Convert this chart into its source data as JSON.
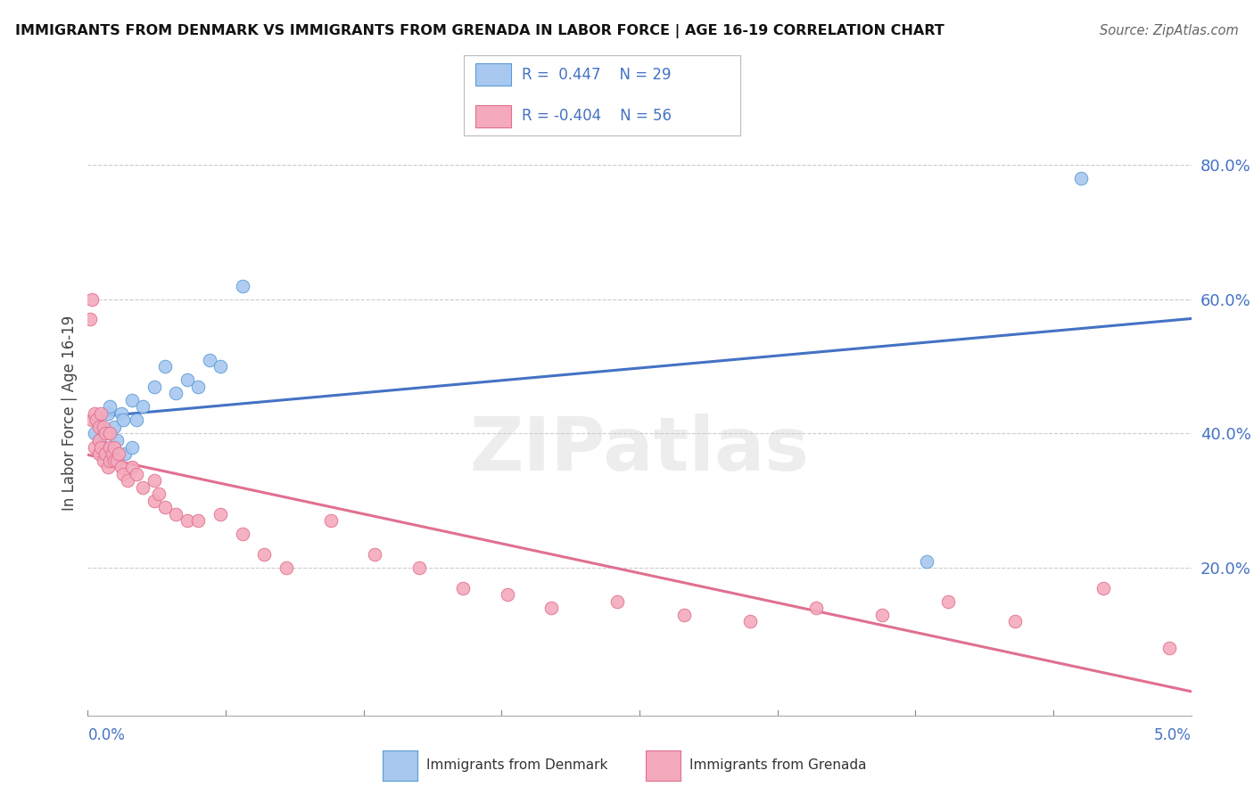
{
  "title": "IMMIGRANTS FROM DENMARK VS IMMIGRANTS FROM GRENADA IN LABOR FORCE | AGE 16-19 CORRELATION CHART",
  "source": "Source: ZipAtlas.com",
  "ylabel": "In Labor Force | Age 16-19",
  "y_tick_labels": [
    "20.0%",
    "40.0%",
    "60.0%",
    "80.0%"
  ],
  "y_tick_values": [
    0.2,
    0.4,
    0.6,
    0.8
  ],
  "xlim": [
    0.0,
    0.05
  ],
  "ylim": [
    -0.02,
    0.88
  ],
  "denmark_color": "#A8C8F0",
  "denmark_edge_color": "#5B9BD5",
  "grenada_color": "#F4AABC",
  "grenada_edge_color": "#E07090",
  "denmark_line_color": "#4472C4",
  "grenada_line_color": "#E07090",
  "background_color": "#FFFFFF",
  "grid_color": "#CCCCCC",
  "watermark": "ZIPatlas",
  "denmark_x": [
    0.0003,
    0.0004,
    0.0005,
    0.0006,
    0.0007,
    0.0008,
    0.0009,
    0.001,
    0.001,
    0.0011,
    0.0012,
    0.0013,
    0.0015,
    0.0016,
    0.0017,
    0.002,
    0.002,
    0.0022,
    0.0025,
    0.003,
    0.0035,
    0.004,
    0.0045,
    0.005,
    0.0055,
    0.006,
    0.007,
    0.038,
    0.045
  ],
  "denmark_y": [
    0.4,
    0.42,
    0.39,
    0.41,
    0.38,
    0.37,
    0.43,
    0.4,
    0.44,
    0.37,
    0.41,
    0.39,
    0.43,
    0.42,
    0.37,
    0.38,
    0.45,
    0.42,
    0.44,
    0.47,
    0.5,
    0.46,
    0.48,
    0.47,
    0.51,
    0.5,
    0.62,
    0.21,
    0.78
  ],
  "grenada_x": [
    0.0001,
    0.0002,
    0.0002,
    0.0003,
    0.0003,
    0.0004,
    0.0005,
    0.0005,
    0.0005,
    0.0006,
    0.0006,
    0.0007,
    0.0007,
    0.0008,
    0.0008,
    0.0009,
    0.001,
    0.001,
    0.001,
    0.0011,
    0.0012,
    0.0012,
    0.0013,
    0.0014,
    0.0015,
    0.0016,
    0.0018,
    0.002,
    0.0022,
    0.0025,
    0.003,
    0.003,
    0.0032,
    0.0035,
    0.004,
    0.0045,
    0.005,
    0.006,
    0.007,
    0.008,
    0.009,
    0.011,
    0.013,
    0.015,
    0.017,
    0.019,
    0.021,
    0.024,
    0.027,
    0.03,
    0.033,
    0.036,
    0.039,
    0.042,
    0.046,
    0.049
  ],
  "grenada_y": [
    0.57,
    0.42,
    0.6,
    0.43,
    0.38,
    0.42,
    0.41,
    0.39,
    0.37,
    0.43,
    0.38,
    0.41,
    0.36,
    0.37,
    0.4,
    0.35,
    0.4,
    0.38,
    0.36,
    0.37,
    0.36,
    0.38,
    0.36,
    0.37,
    0.35,
    0.34,
    0.33,
    0.35,
    0.34,
    0.32,
    0.3,
    0.33,
    0.31,
    0.29,
    0.28,
    0.27,
    0.27,
    0.28,
    0.25,
    0.22,
    0.2,
    0.27,
    0.22,
    0.2,
    0.17,
    0.16,
    0.14,
    0.15,
    0.13,
    0.12,
    0.14,
    0.13,
    0.15,
    0.12,
    0.17,
    0.08
  ]
}
